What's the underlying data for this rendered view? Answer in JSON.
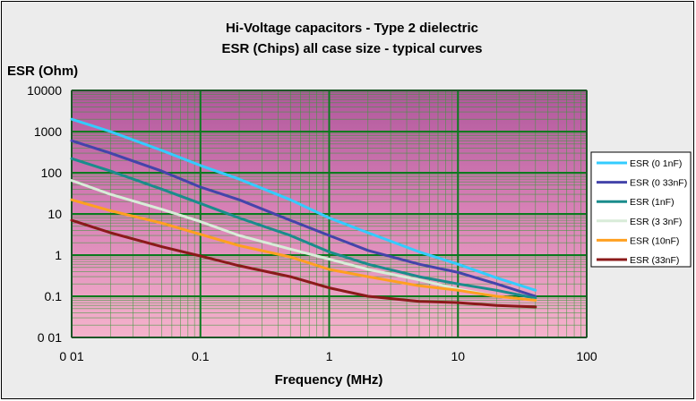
{
  "chart_data": {
    "type": "line",
    "title": "Hi-Voltage capacitors - Type 2 dielectric",
    "subtitle": "ESR (Chips) all case size - typical curves",
    "xlabel": "Frequency  (MHz)",
    "ylabel": "ESR (Ohm)",
    "x_scale": "log",
    "y_scale": "log",
    "xlim": [
      0.01,
      100
    ],
    "ylim": [
      0.01,
      10000
    ],
    "x_tick_values": [
      0.01,
      0.1,
      1,
      10,
      100
    ],
    "x_tick_labels": [
      "0 01",
      "0.1",
      "1",
      "10",
      "100"
    ],
    "y_tick_values": [
      10000,
      1000,
      100,
      10,
      1,
      0.1,
      0.01
    ],
    "y_tick_labels": [
      "10000",
      "1000",
      "100",
      "10",
      "1",
      "0.1",
      "0 01"
    ],
    "grid": true,
    "legend_position": "right",
    "series": [
      {
        "name": "ESR (0 1nF)",
        "color": "#33ccff",
        "x": [
          0.01,
          0.02,
          0.05,
          0.1,
          0.2,
          0.5,
          1,
          2,
          5,
          10,
          20,
          40
        ],
        "y": [
          2000,
          1000,
          350,
          150,
          70,
          22,
          8,
          3.5,
          1.2,
          0.6,
          0.28,
          0.14
        ]
      },
      {
        "name": "ESR (0 33nF)",
        "color": "#4444aa",
        "x": [
          0.01,
          0.02,
          0.05,
          0.1,
          0.2,
          0.5,
          1,
          2,
          5,
          10,
          20,
          40
        ],
        "y": [
          600,
          300,
          110,
          45,
          22,
          7,
          3,
          1.3,
          0.6,
          0.38,
          0.2,
          0.1
        ]
      },
      {
        "name": "ESR (1nF)",
        "color": "#1a8c8c",
        "x": [
          0.01,
          0.02,
          0.05,
          0.1,
          0.2,
          0.5,
          1,
          2,
          5,
          10,
          20,
          40
        ],
        "y": [
          220,
          110,
          40,
          18,
          8,
          3,
          1.2,
          0.6,
          0.3,
          0.2,
          0.14,
          0.09
        ]
      },
      {
        "name": "ESR (3 3nF)",
        "color": "#d8ecd8",
        "x": [
          0.01,
          0.02,
          0.05,
          0.1,
          0.2,
          0.5,
          1,
          2,
          5,
          10,
          20,
          40
        ],
        "y": [
          65,
          30,
          13,
          6.5,
          3,
          1.4,
          0.8,
          0.45,
          0.25,
          0.15,
          0.1,
          0.08
        ]
      },
      {
        "name": "ESR (10nF)",
        "color": "#ffa020",
        "x": [
          0.01,
          0.02,
          0.05,
          0.1,
          0.2,
          0.5,
          1,
          2,
          5,
          10,
          20,
          40
        ],
        "y": [
          22,
          12,
          6,
          3.2,
          1.7,
          0.9,
          0.45,
          0.3,
          0.18,
          0.14,
          0.1,
          0.08
        ]
      },
      {
        "name": "ESR (33nF)",
        "color": "#8b1a1a",
        "x": [
          0.01,
          0.02,
          0.05,
          0.1,
          0.2,
          0.5,
          1,
          2,
          5,
          10,
          20,
          40
        ],
        "y": [
          7,
          3.5,
          1.6,
          0.95,
          0.55,
          0.3,
          0.16,
          0.1,
          0.075,
          0.07,
          0.06,
          0.055
        ]
      }
    ]
  }
}
